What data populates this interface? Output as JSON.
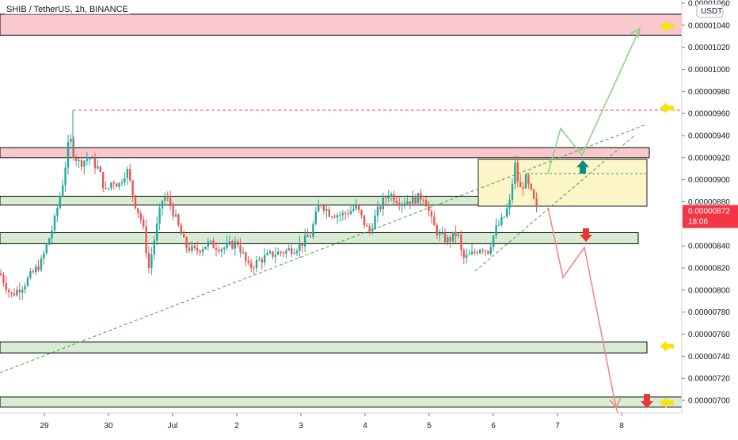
{
  "header": {
    "title": "SHIB / TetherUS, 1h, BINANCE",
    "currency_badge": "USDT"
  },
  "price_label": {
    "value": "0.00000872",
    "countdown": "18:06",
    "color": "#f23645"
  },
  "colors": {
    "up": "#26a69a",
    "down": "#ef5350",
    "resistance_zone": "#f8c8cc",
    "support_zone": "#d7ecd2",
    "consolidation_box": "#fbf5c8",
    "trendline": "#43a047",
    "level_marker": "#f5e50a",
    "projection_up": "#8fd08a",
    "projection_down": "#f08a85",
    "arrow_up": "#0e8f7e",
    "arrow_down": "#e53935"
  },
  "chart_data": {
    "type": "candlestick",
    "title": "SHIB / TetherUS, 1h, BINANCE",
    "y_ticks": [
      "0.00001060",
      "0.00001040",
      "0.00001020",
      "0.00001000",
      "0.00000980",
      "0.00000960",
      "0.00000940",
      "0.00000920",
      "0.00000900",
      "0.00000880",
      "0.00000860",
      "0.00000840",
      "0.00000820",
      "0.00000800",
      "0.00000780",
      "0.00000760",
      "0.00000740",
      "0.00000720",
      "0.00000700"
    ],
    "ylim": [
      "0.00000693",
      "0.00001062"
    ],
    "x_ticks": [
      "29",
      "30",
      "Jul",
      "2",
      "3",
      "4",
      "5",
      "6",
      "7",
      "8"
    ],
    "last_price": "0.00000872",
    "swing_high": "0.00000963",
    "horizontal_zones": [
      {
        "kind": "resistance",
        "low": "0.00001031",
        "high": "0.00001050"
      },
      {
        "kind": "resistance",
        "low": "0.00000920",
        "high": "0.00000929"
      },
      {
        "kind": "support",
        "low": "0.00000877",
        "high": "0.00000885"
      },
      {
        "kind": "support",
        "low": "0.00000842",
        "high": "0.00000852"
      },
      {
        "kind": "support",
        "low": "0.00000743",
        "high": "0.00000753"
      },
      {
        "kind": "support",
        "low": "0.00000694",
        "high": "0.00000703"
      }
    ],
    "level_markers": [
      "0.00001039",
      "0.00000965",
      "0.00000749",
      "0.00000698"
    ]
  }
}
